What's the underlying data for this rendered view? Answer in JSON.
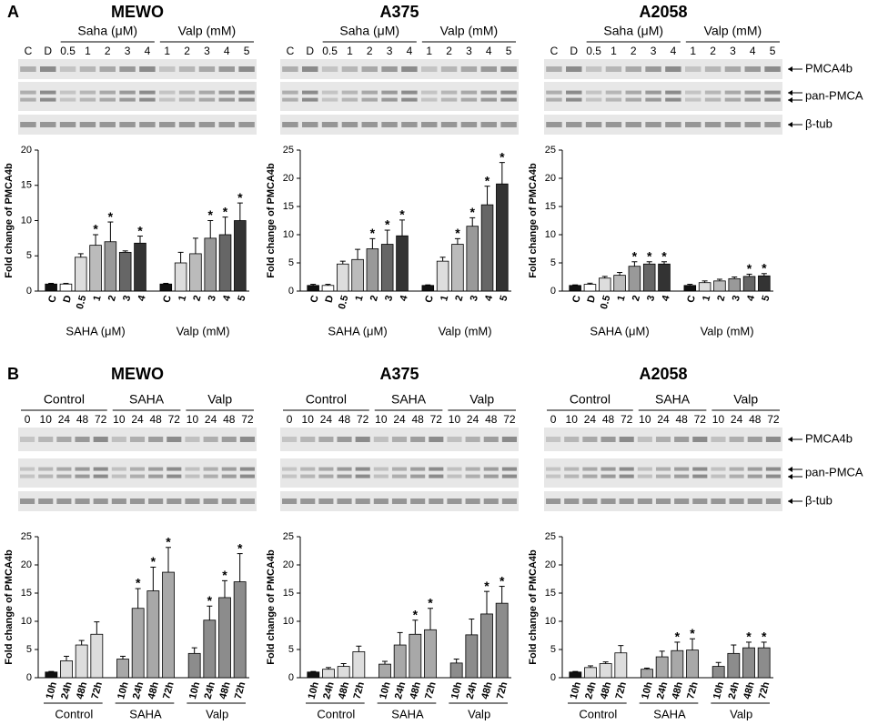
{
  "figure": {
    "panels": [
      {
        "letter": "A",
        "blot_labels": [
          "PMCA4b",
          "pan-PMCA",
          "β-tub"
        ],
        "columns": [
          {
            "title": "MEWO",
            "lane_groups": [
              {
                "name": null,
                "lanes": [
                  "C",
                  "D"
                ]
              },
              {
                "name": "Saha (μM)",
                "lanes": [
                  "0.5",
                  "1",
                  "2",
                  "3",
                  "4"
                ]
              },
              {
                "name": "Valp (mM)",
                "lanes": [
                  "1",
                  "2",
                  "3",
                  "4",
                  "5"
                ]
              }
            ]
          },
          {
            "title": "A375",
            "lane_groups": [
              {
                "name": null,
                "lanes": [
                  "C",
                  "D"
                ]
              },
              {
                "name": "Saha (μM)",
                "lanes": [
                  "0.5",
                  "1",
                  "2",
                  "3",
                  "4"
                ]
              },
              {
                "name": "Valp (mM)",
                "lanes": [
                  "1",
                  "2",
                  "3",
                  "4",
                  "5"
                ]
              }
            ]
          },
          {
            "title": "A2058",
            "lane_groups": [
              {
                "name": null,
                "lanes": [
                  "C",
                  "D"
                ]
              },
              {
                "name": "Saha (μM)",
                "lanes": [
                  "0.5",
                  "1",
                  "2",
                  "3",
                  "4"
                ]
              },
              {
                "name": "Valp (mM)",
                "lanes": [
                  "1",
                  "2",
                  "3",
                  "4",
                  "5"
                ]
              }
            ]
          }
        ]
      },
      {
        "letter": "B",
        "blot_labels": [
          "PMCA4b",
          "pan-PMCA",
          "β-tub"
        ],
        "columns": [
          {
            "title": "MEWO",
            "lane_groups": [
              {
                "name": "Control",
                "lanes": [
                  "0",
                  "10",
                  "24",
                  "48",
                  "72"
                ]
              },
              {
                "name": "SAHA",
                "lanes": [
                  "10",
                  "24",
                  "48",
                  "72"
                ]
              },
              {
                "name": "Valp",
                "lanes": [
                  "10",
                  "24",
                  "48",
                  "72"
                ]
              }
            ]
          },
          {
            "title": "A375",
            "lane_groups": [
              {
                "name": "Control",
                "lanes": [
                  "0",
                  "10",
                  "24",
                  "48",
                  "72"
                ]
              },
              {
                "name": "SAHA",
                "lanes": [
                  "10",
                  "24",
                  "48",
                  "72"
                ]
              },
              {
                "name": "Valp",
                "lanes": [
                  "10",
                  "24",
                  "48",
                  "72"
                ]
              }
            ]
          },
          {
            "title": "A2058",
            "lane_groups": [
              {
                "name": "Control",
                "lanes": [
                  "0",
                  "10",
                  "24",
                  "48",
                  "72"
                ]
              },
              {
                "name": "SAHA",
                "lanes": [
                  "10",
                  "24",
                  "48",
                  "72"
                ]
              },
              {
                "name": "Valp",
                "lanes": [
                  "10",
                  "24",
                  "48",
                  "72"
                ]
              }
            ]
          }
        ]
      }
    ]
  },
  "chart_data": [
    {
      "type": "bar",
      "ylabel": "Fold change of PMCA4b",
      "ylim": [
        0,
        20
      ],
      "yticks": [
        0,
        5,
        10,
        15,
        20
      ],
      "star": "*",
      "groups": [
        {
          "name": "SAHA (μM)",
          "categories": [
            "C",
            "D",
            "0.5",
            "1",
            "2",
            "3",
            "4"
          ],
          "values": [
            1,
            1,
            4.8,
            6.5,
            7,
            5.5,
            6.8
          ],
          "errors": [
            0.1,
            0.1,
            0.5,
            1.5,
            2.8,
            0.2,
            1
          ],
          "significant": [
            false,
            false,
            false,
            true,
            true,
            false,
            true
          ],
          "colors": [
            "#111111",
            "#ffffff",
            "#dddddd",
            "#bbbbbb",
            "#999999",
            "#666666",
            "#333333"
          ]
        },
        {
          "name": "Valp (mM)",
          "categories": [
            "C",
            "1",
            "2",
            "3",
            "4",
            "5"
          ],
          "values": [
            1,
            4,
            5.3,
            7.5,
            8,
            10
          ],
          "errors": [
            0.1,
            1.5,
            2.2,
            2.5,
            2.5,
            2.5
          ],
          "significant": [
            false,
            false,
            false,
            true,
            true,
            true
          ],
          "colors": [
            "#111111",
            "#dddddd",
            "#bbbbbb",
            "#999999",
            "#666666",
            "#333333"
          ]
        }
      ]
    },
    {
      "type": "bar",
      "ylabel": "Fold change of PMCA4b",
      "ylim": [
        0,
        25
      ],
      "yticks": [
        0,
        5,
        10,
        15,
        20,
        25
      ],
      "star": "*",
      "groups": [
        {
          "name": "SAHA (μM)",
          "categories": [
            "C",
            "D",
            "0.5",
            "1",
            "2",
            "3",
            "4"
          ],
          "values": [
            1,
            1,
            4.8,
            5.6,
            7.5,
            8.3,
            9.8
          ],
          "errors": [
            0.2,
            0.2,
            0.5,
            1.8,
            1.8,
            2.5,
            2.8
          ],
          "significant": [
            false,
            false,
            false,
            false,
            true,
            true,
            true
          ],
          "colors": [
            "#111111",
            "#ffffff",
            "#dddddd",
            "#bbbbbb",
            "#999999",
            "#666666",
            "#333333"
          ]
        },
        {
          "name": "Valp (mM)",
          "categories": [
            "C",
            "1",
            "2",
            "3",
            "4",
            "5"
          ],
          "values": [
            1,
            5.3,
            8.3,
            11.5,
            15.3,
            19
          ],
          "errors": [
            0.1,
            0.7,
            1,
            1.5,
            3.3,
            3.8
          ],
          "significant": [
            false,
            false,
            true,
            true,
            true,
            true
          ],
          "colors": [
            "#111111",
            "#dddddd",
            "#bbbbbb",
            "#999999",
            "#666666",
            "#333333"
          ]
        }
      ]
    },
    {
      "type": "bar",
      "ylabel": "Fold change of PMCA4b",
      "ylim": [
        0,
        25
      ],
      "yticks": [
        0,
        5,
        10,
        15,
        20,
        25
      ],
      "star": "*",
      "groups": [
        {
          "name": "SAHA (μM)",
          "categories": [
            "C",
            "D",
            "0.5",
            "1",
            "2",
            "3",
            "4"
          ],
          "values": [
            1,
            1.2,
            2.3,
            2.8,
            4.4,
            4.8,
            4.8
          ],
          "errors": [
            0.1,
            0.2,
            0.3,
            0.5,
            0.8,
            0.4,
            0.4
          ],
          "significant": [
            false,
            false,
            false,
            false,
            true,
            true,
            true
          ],
          "colors": [
            "#111111",
            "#ffffff",
            "#dddddd",
            "#bbbbbb",
            "#999999",
            "#666666",
            "#333333"
          ]
        },
        {
          "name": "Valp (mM)",
          "categories": [
            "C",
            "1",
            "2",
            "3",
            "4",
            "5"
          ],
          "values": [
            1,
            1.5,
            1.8,
            2.2,
            2.6,
            2.7
          ],
          "errors": [
            0.2,
            0.3,
            0.3,
            0.3,
            0.4,
            0.4
          ],
          "significant": [
            false,
            false,
            false,
            false,
            true,
            true
          ],
          "colors": [
            "#111111",
            "#dddddd",
            "#bbbbbb",
            "#999999",
            "#666666",
            "#333333"
          ]
        }
      ]
    },
    {
      "type": "bar",
      "ylabel": "Fold change of PMCA4b",
      "ylim": [
        0,
        25
      ],
      "yticks": [
        0,
        5,
        10,
        15,
        20,
        25
      ],
      "star": "*",
      "underline_groups": true,
      "groups": [
        {
          "name": "Control",
          "categories": [
            "10h",
            "24h",
            "48h",
            "72h"
          ],
          "values": [
            1,
            3,
            5.8,
            7.7
          ],
          "errors": [
            0.1,
            0.8,
            0.8,
            2.2
          ],
          "significant": [
            false,
            false,
            false,
            false
          ],
          "colors": [
            "#111111",
            "#dddddd",
            "#dddddd",
            "#dddddd"
          ]
        },
        {
          "name": "SAHA",
          "categories": [
            "10h",
            "24h",
            "48h",
            "72h"
          ],
          "values": [
            3.3,
            12.3,
            15.4,
            18.7
          ],
          "errors": [
            0.5,
            3.5,
            4.2,
            4.4
          ],
          "significant": [
            false,
            true,
            true,
            true
          ],
          "colors": [
            "#a8a8a8",
            "#a8a8a8",
            "#a8a8a8",
            "#a8a8a8"
          ]
        },
        {
          "name": "Valp",
          "categories": [
            "10h",
            "24h",
            "48h",
            "72h"
          ],
          "values": [
            4.3,
            10.2,
            14.2,
            17
          ],
          "errors": [
            1,
            2.5,
            3,
            5
          ],
          "significant": [
            false,
            true,
            true,
            true
          ],
          "colors": [
            "#8c8c8c",
            "#8c8c8c",
            "#8c8c8c",
            "#8c8c8c"
          ]
        }
      ]
    },
    {
      "type": "bar",
      "ylabel": "Fold change of PMCA4b",
      "ylim": [
        0,
        25
      ],
      "yticks": [
        0,
        5,
        10,
        15,
        20,
        25
      ],
      "star": "*",
      "underline_groups": true,
      "groups": [
        {
          "name": "Control",
          "categories": [
            "10h",
            "24h",
            "48h",
            "72h"
          ],
          "values": [
            1,
            1.5,
            2,
            4.6
          ],
          "errors": [
            0.1,
            0.3,
            0.5,
            1
          ],
          "significant": [
            false,
            false,
            false,
            false
          ],
          "colors": [
            "#111111",
            "#dddddd",
            "#dddddd",
            "#dddddd"
          ]
        },
        {
          "name": "SAHA",
          "categories": [
            "10h",
            "24h",
            "48h",
            "72h"
          ],
          "values": [
            2.4,
            5.8,
            7.7,
            8.5
          ],
          "errors": [
            0.5,
            2.2,
            2.5,
            3.8
          ],
          "significant": [
            false,
            false,
            true,
            true
          ],
          "colors": [
            "#a8a8a8",
            "#a8a8a8",
            "#a8a8a8",
            "#a8a8a8"
          ]
        },
        {
          "name": "Valp",
          "categories": [
            "10h",
            "24h",
            "48h",
            "72h"
          ],
          "values": [
            2.6,
            7.6,
            11.3,
            13.2
          ],
          "errors": [
            0.7,
            2.8,
            4,
            3
          ],
          "significant": [
            false,
            false,
            true,
            true
          ],
          "colors": [
            "#8c8c8c",
            "#8c8c8c",
            "#8c8c8c",
            "#8c8c8c"
          ]
        }
      ]
    },
    {
      "type": "bar",
      "ylabel": "Fold change of PMCA4b",
      "ylim": [
        0,
        25
      ],
      "yticks": [
        0,
        5,
        10,
        15,
        20,
        25
      ],
      "star": "*",
      "underline_groups": true,
      "groups": [
        {
          "name": "Control",
          "categories": [
            "10h",
            "24h",
            "48h",
            "72h"
          ],
          "values": [
            1,
            1.8,
            2.5,
            4.4
          ],
          "errors": [
            0.1,
            0.3,
            0.3,
            1.3
          ],
          "significant": [
            false,
            false,
            false,
            false
          ],
          "colors": [
            "#111111",
            "#dddddd",
            "#dddddd",
            "#dddddd"
          ]
        },
        {
          "name": "SAHA",
          "categories": [
            "10h",
            "24h",
            "48h",
            "72h"
          ],
          "values": [
            1.5,
            3.7,
            4.8,
            4.9
          ],
          "errors": [
            0.2,
            1,
            1.5,
            2
          ],
          "significant": [
            false,
            false,
            true,
            true
          ],
          "colors": [
            "#a8a8a8",
            "#a8a8a8",
            "#a8a8a8",
            "#a8a8a8"
          ]
        },
        {
          "name": "Valp",
          "categories": [
            "10h",
            "24h",
            "48h",
            "72h"
          ],
          "values": [
            2,
            4.3,
            5.3,
            5.3
          ],
          "errors": [
            0.7,
            1.5,
            1,
            1
          ],
          "significant": [
            false,
            false,
            true,
            true
          ],
          "colors": [
            "#8c8c8c",
            "#8c8c8c",
            "#8c8c8c",
            "#8c8c8c"
          ]
        }
      ]
    }
  ]
}
